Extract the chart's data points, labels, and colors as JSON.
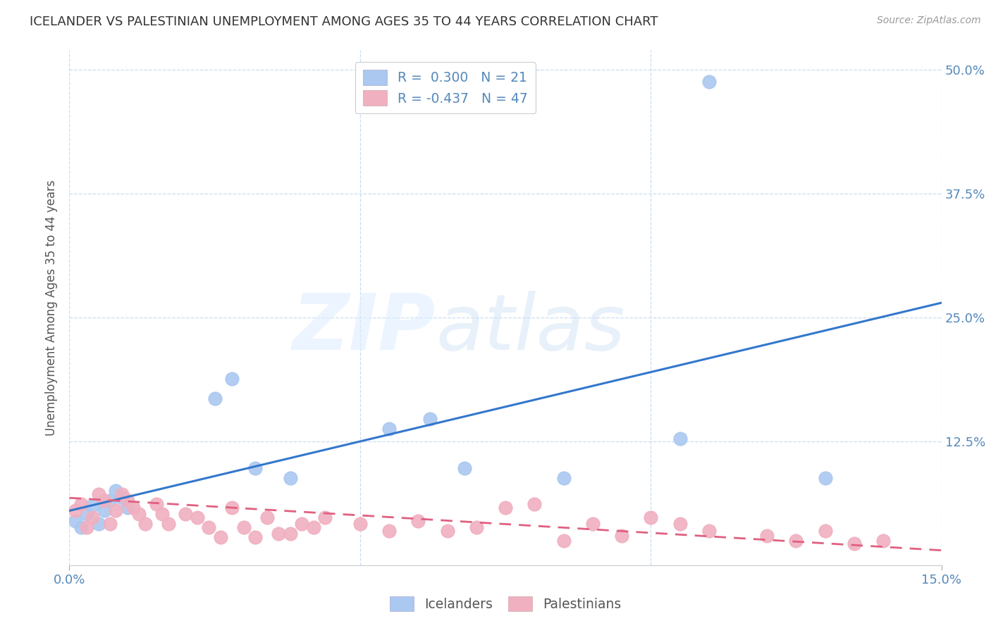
{
  "title": "ICELANDER VS PALESTINIAN UNEMPLOYMENT AMONG AGES 35 TO 44 YEARS CORRELATION CHART",
  "source": "Source: ZipAtlas.com",
  "ylabel": "Unemployment Among Ages 35 to 44 years",
  "ylabel_ticks_right": [
    "50.0%",
    "37.5%",
    "25.0%",
    "12.5%"
  ],
  "ytick_vals": [
    0.0,
    0.125,
    0.25,
    0.375,
    0.5
  ],
  "ytick_labels": [
    "",
    "12.5%",
    "25.0%",
    "37.5%",
    "50.0%"
  ],
  "xtick_labels": [
    "0.0%",
    "15.0%"
  ],
  "xlim": [
    0.0,
    0.15
  ],
  "ylim": [
    0.0,
    0.52
  ],
  "legend_blue_label": "R =  0.300   N = 21",
  "legend_pink_label": "R = -0.437   N = 47",
  "blue_scatter_color": "#aac8f0",
  "pink_scatter_color": "#f0b0c0",
  "blue_line_color": "#3377cc",
  "pink_line_color": "#e06080",
  "axis_label_color": "#5588bb",
  "grid_color": "#c8ddf0",
  "title_color": "#333333",
  "source_color": "#999999",
  "ylabel_color": "#555555",
  "watermark_zip_color": "#ddeeff",
  "watermark_atlas_color": "#c8ddf8",
  "blue_line_x": [
    0.0,
    0.15
  ],
  "blue_line_y": [
    0.055,
    0.265
  ],
  "pink_line_x": [
    0.0,
    0.15
  ],
  "pink_line_y": [
    0.068,
    0.015
  ],
  "icelanders_x": [
    0.001,
    0.002,
    0.003,
    0.004,
    0.005,
    0.006,
    0.007,
    0.008,
    0.009,
    0.01,
    0.025,
    0.028,
    0.032,
    0.038,
    0.055,
    0.062,
    0.068,
    0.085,
    0.105,
    0.11,
    0.13
  ],
  "icelanders_y": [
    0.045,
    0.038,
    0.052,
    0.06,
    0.042,
    0.055,
    0.065,
    0.075,
    0.068,
    0.058,
    0.168,
    0.188,
    0.098,
    0.088,
    0.138,
    0.148,
    0.098,
    0.088,
    0.128,
    0.488,
    0.088
  ],
  "palestinians_x": [
    0.001,
    0.002,
    0.003,
    0.004,
    0.005,
    0.006,
    0.007,
    0.008,
    0.009,
    0.01,
    0.011,
    0.012,
    0.013,
    0.015,
    0.016,
    0.017,
    0.02,
    0.022,
    0.024,
    0.026,
    0.028,
    0.03,
    0.032,
    0.034,
    0.036,
    0.038,
    0.04,
    0.042,
    0.044,
    0.05,
    0.055,
    0.06,
    0.065,
    0.07,
    0.075,
    0.08,
    0.085,
    0.09,
    0.095,
    0.1,
    0.105,
    0.11,
    0.12,
    0.125,
    0.13,
    0.135,
    0.14
  ],
  "palestinians_y": [
    0.055,
    0.062,
    0.038,
    0.048,
    0.072,
    0.065,
    0.042,
    0.055,
    0.072,
    0.065,
    0.058,
    0.052,
    0.042,
    0.062,
    0.052,
    0.042,
    0.052,
    0.048,
    0.038,
    0.028,
    0.058,
    0.038,
    0.028,
    0.048,
    0.032,
    0.032,
    0.042,
    0.038,
    0.048,
    0.042,
    0.035,
    0.045,
    0.035,
    0.038,
    0.058,
    0.062,
    0.025,
    0.042,
    0.03,
    0.048,
    0.042,
    0.035,
    0.03,
    0.025,
    0.035,
    0.022,
    0.025
  ]
}
